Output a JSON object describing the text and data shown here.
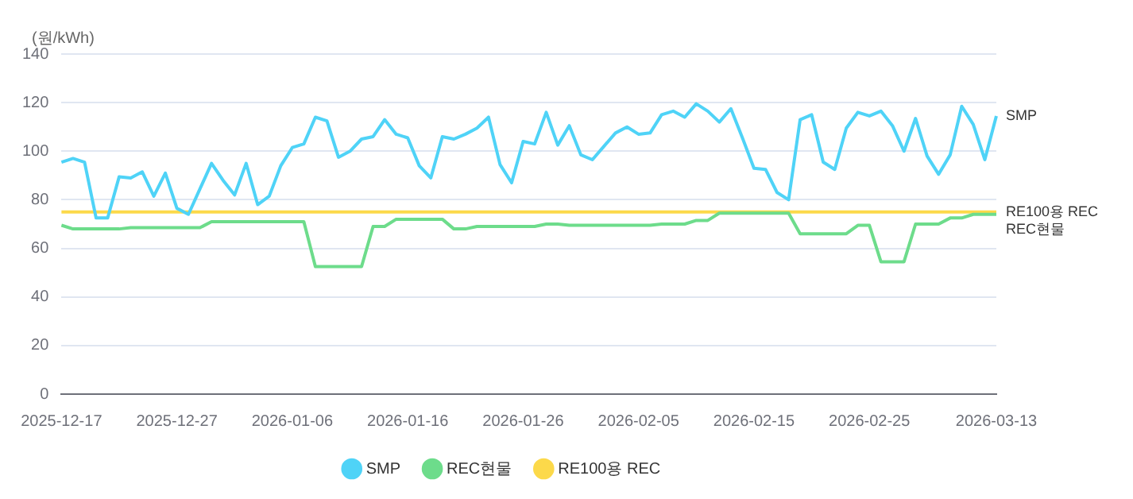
{
  "chart_data": {
    "type": "line",
    "ylabel": "(원/kWh)",
    "categories": [
      "2025-12-17",
      null,
      null,
      null,
      null,
      null,
      null,
      null,
      null,
      null,
      "2025-12-27",
      null,
      null,
      null,
      null,
      null,
      null,
      null,
      null,
      null,
      "2026-01-06",
      null,
      null,
      null,
      null,
      null,
      null,
      null,
      null,
      null,
      "2026-01-16",
      null,
      null,
      null,
      null,
      null,
      null,
      null,
      null,
      null,
      "2026-01-26",
      null,
      null,
      null,
      null,
      null,
      null,
      null,
      null,
      null,
      "2026-02-05",
      null,
      null,
      null,
      null,
      null,
      null,
      null,
      null,
      null,
      "2026-02-15",
      null,
      null,
      null,
      null,
      null,
      null,
      null,
      null,
      null,
      "2026-02-25",
      null,
      null,
      null,
      null,
      null,
      null,
      null,
      null,
      null,
      null,
      "2026-03-13"
    ],
    "series": [
      {
        "name": "SMP",
        "color": "#4fd3f7",
        "values": [
          95.5,
          97,
          95.5,
          72.5,
          72.5,
          89.5,
          89,
          91.5,
          81.5,
          91,
          76.5,
          74,
          84.5,
          95,
          88,
          82,
          95,
          78,
          81.5,
          94,
          101.5,
          103,
          114,
          112.5,
          97.5,
          100,
          105,
          106,
          113,
          107,
          105.5,
          94,
          89,
          106,
          105,
          107,
          109.5,
          114,
          94.5,
          87,
          104,
          103,
          116,
          102.5,
          110.5,
          98.5,
          96.5,
          102,
          107.5,
          110,
          107,
          107.5,
          115,
          116.5,
          114,
          119.5,
          116.5,
          112,
          117.5,
          105.5,
          93,
          92.5,
          83,
          80,
          113,
          115,
          95.5,
          92.5,
          109.5,
          116,
          114.5,
          116.5,
          110.5,
          100,
          113.5,
          98,
          90.5,
          98.5,
          118.5,
          111,
          96.5,
          114.5
        ]
      },
      {
        "name": "REC현물",
        "color": "#6ddc8b",
        "values": [
          69.5,
          68,
          68,
          68,
          68,
          68,
          68.5,
          68.5,
          68.5,
          68.5,
          68.5,
          68.5,
          68.5,
          71,
          71,
          71,
          71,
          71,
          71,
          71,
          71,
          71,
          52.5,
          52.5,
          52.5,
          52.5,
          52.5,
          69,
          69,
          72,
          72,
          72,
          72,
          72,
          68,
          68,
          69,
          69,
          69,
          69,
          69,
          69,
          70,
          70,
          69.5,
          69.5,
          69.5,
          69.5,
          69.5,
          69.5,
          69.5,
          69.5,
          70,
          70,
          70,
          71.5,
          71.5,
          74.5,
          74.5,
          74.5,
          74.5,
          74.5,
          74.5,
          74.5,
          66,
          66,
          66,
          66,
          66,
          69.5,
          69.5,
          54.5,
          54.5,
          54.5,
          70,
          70,
          70,
          72.5,
          72.5,
          74,
          74,
          74
        ]
      },
      {
        "name": "RE100용 REC",
        "color": "#fcd94a",
        "values": [
          75,
          75,
          75,
          75,
          75,
          75,
          75,
          75,
          75,
          75,
          75,
          75,
          75,
          75,
          75,
          75,
          75,
          75,
          75,
          75,
          75,
          75,
          75,
          75,
          75,
          75,
          75,
          75,
          75,
          75,
          75,
          75,
          75,
          75,
          75,
          75,
          75,
          75,
          75,
          75,
          75,
          75,
          75,
          75,
          75,
          75,
          75,
          75,
          75,
          75,
          75,
          75,
          75,
          75,
          75,
          75,
          75,
          75,
          75,
          75,
          75,
          75,
          75,
          75,
          75,
          75,
          75,
          75,
          75,
          75,
          75,
          75,
          75,
          75,
          75,
          75,
          75,
          75,
          75,
          75,
          75,
          75
        ]
      }
    ],
    "ylim": [
      0,
      140
    ],
    "yticks": [
      0,
      20,
      40,
      60,
      80,
      100,
      120,
      140
    ],
    "grid": "y",
    "legend": "bottom",
    "marker": "none"
  }
}
